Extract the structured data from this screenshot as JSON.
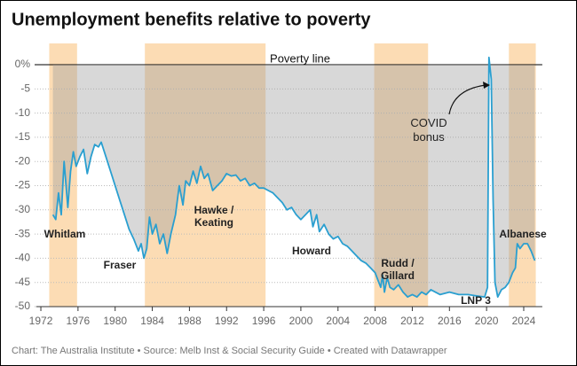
{
  "chart_data": {
    "type": "line",
    "title": "Unemployment benefits relative to poverty",
    "footer": "Chart: The Australia Institute  • Source: Melb Inst & Social Security Guide • Created with Datawrapper",
    "reference_label": "Poverty line",
    "annotation": "COVID bonus",
    "line_color": "#2a9fd0",
    "area_color": "#9e9e9e",
    "band_color": "#fcdcb4",
    "x": [
      1973.3,
      1973.6,
      1973.9,
      1974.2,
      1974.5,
      1974.9,
      1975.2,
      1975.5,
      1975.8,
      1976.2,
      1976.6,
      1977.0,
      1977.4,
      1977.8,
      1978.2,
      1978.5,
      1979.0,
      1979.5,
      1980.0,
      1980.5,
      1981.0,
      1981.5,
      1982.0,
      1982.5,
      1982.8,
      1983.1,
      1983.4,
      1983.7,
      1984.0,
      1984.4,
      1984.8,
      1985.2,
      1985.6,
      1986.0,
      1986.5,
      1986.9,
      1987.3,
      1987.6,
      1988.0,
      1988.4,
      1988.8,
      1989.2,
      1989.6,
      1990.0,
      1990.5,
      1991.0,
      1991.5,
      1992.0,
      1992.5,
      1993.0,
      1993.5,
      1994.0,
      1994.5,
      1995.0,
      1995.5,
      1996.0,
      1996.5,
      1997.0,
      1997.5,
      1998.0,
      1998.5,
      1999.0,
      1999.5,
      2000.0,
      2000.5,
      2001.0,
      2001.3,
      2001.7,
      2002.0,
      2002.5,
      2003.0,
      2003.5,
      2004.0,
      2004.5,
      2005.0,
      2005.5,
      2006.0,
      2006.5,
      2007.0,
      2007.5,
      2008.0,
      2008.3,
      2008.6,
      2008.8,
      2009.0,
      2009.3,
      2009.6,
      2010.0,
      2010.5,
      2011.0,
      2011.5,
      2012.0,
      2012.5,
      2013.0,
      2013.5,
      2014.0,
      2015.0,
      2016.0,
      2017.0,
      2018.0,
      2019.0,
      2019.8,
      2020.1,
      2020.25,
      2020.5,
      2020.7,
      2020.9,
      2021.2,
      2021.6,
      2022.0,
      2022.4,
      2022.8,
      2023.1,
      2023.3,
      2023.6,
      2024.0,
      2024.4,
      2024.8,
      2025.2
    ],
    "values": [
      -31,
      -32,
      -26.5,
      -31,
      -20,
      -29.5,
      -22,
      -18,
      -21,
      -19,
      -17.5,
      -22.5,
      -19,
      -16.5,
      -17,
      -16,
      -19,
      -22,
      -25,
      -28,
      -31,
      -34,
      -36,
      -38.5,
      -37,
      -40,
      -38,
      -31.5,
      -35,
      -33,
      -37,
      -35,
      -39,
      -35,
      -31,
      -25,
      -29,
      -24,
      -25,
      -22,
      -24.5,
      -21,
      -23.5,
      -22.5,
      -26,
      -25,
      -24,
      -22.5,
      -23,
      -22.8,
      -24,
      -23.5,
      -25,
      -24.5,
      -25.5,
      -25.5,
      -26,
      -26.5,
      -27.5,
      -28.5,
      -30,
      -29.5,
      -31,
      -32,
      -31,
      -30,
      -33.5,
      -31,
      -34.5,
      -33,
      -35,
      -36,
      -35.5,
      -37,
      -37.5,
      -38.5,
      -39.5,
      -40.5,
      -41,
      -42,
      -43,
      -44.5,
      -46,
      -43.5,
      -47,
      -44,
      -46,
      -46.5,
      -45.5,
      -47,
      -48,
      -47.5,
      -48,
      -47,
      -47.5,
      -46.5,
      -47.5,
      -47,
      -47.5,
      -47.5,
      -47.8,
      -48,
      -46,
      1.5,
      -3,
      -28,
      -45,
      -48,
      -46.5,
      -46,
      -45,
      -43,
      -42,
      -37,
      -38,
      -37,
      -37,
      -38.5,
      -40.5
    ],
    "periods": [
      {
        "name": "Whitlam",
        "start": 1972.9,
        "end": 1975.9,
        "shaded": true
      },
      {
        "name": "Fraser",
        "start": 1975.9,
        "end": 1983.2,
        "shaded": false
      },
      {
        "name": "Hawke / Keating",
        "start": 1983.2,
        "end": 1996.2,
        "shaded": true
      },
      {
        "name": "Howard",
        "start": 1996.2,
        "end": 2007.9,
        "shaded": false
      },
      {
        "name": "Rudd / Gillard",
        "start": 2007.9,
        "end": 2013.7,
        "shaded": true
      },
      {
        "name": "LNP 3",
        "start": 2013.7,
        "end": 2022.4,
        "shaded": false
      },
      {
        "name": "Albanese",
        "start": 2022.4,
        "end": 2025.3,
        "shaded": true
      }
    ],
    "xlim": [
      1971.5,
      2026
    ],
    "xticks": [
      1972,
      1976,
      1980,
      1984,
      1988,
      1992,
      1996,
      2000,
      2004,
      2008,
      2012,
      2016,
      2020,
      2024
    ],
    "ylim": [
      -50,
      4.4
    ],
    "yticks": [
      {
        "value": 0,
        "label": "0%"
      },
      -5,
      -10,
      -15,
      -20,
      -25,
      -30,
      -35,
      -40,
      -45,
      -50
    ],
    "grid": true
  }
}
